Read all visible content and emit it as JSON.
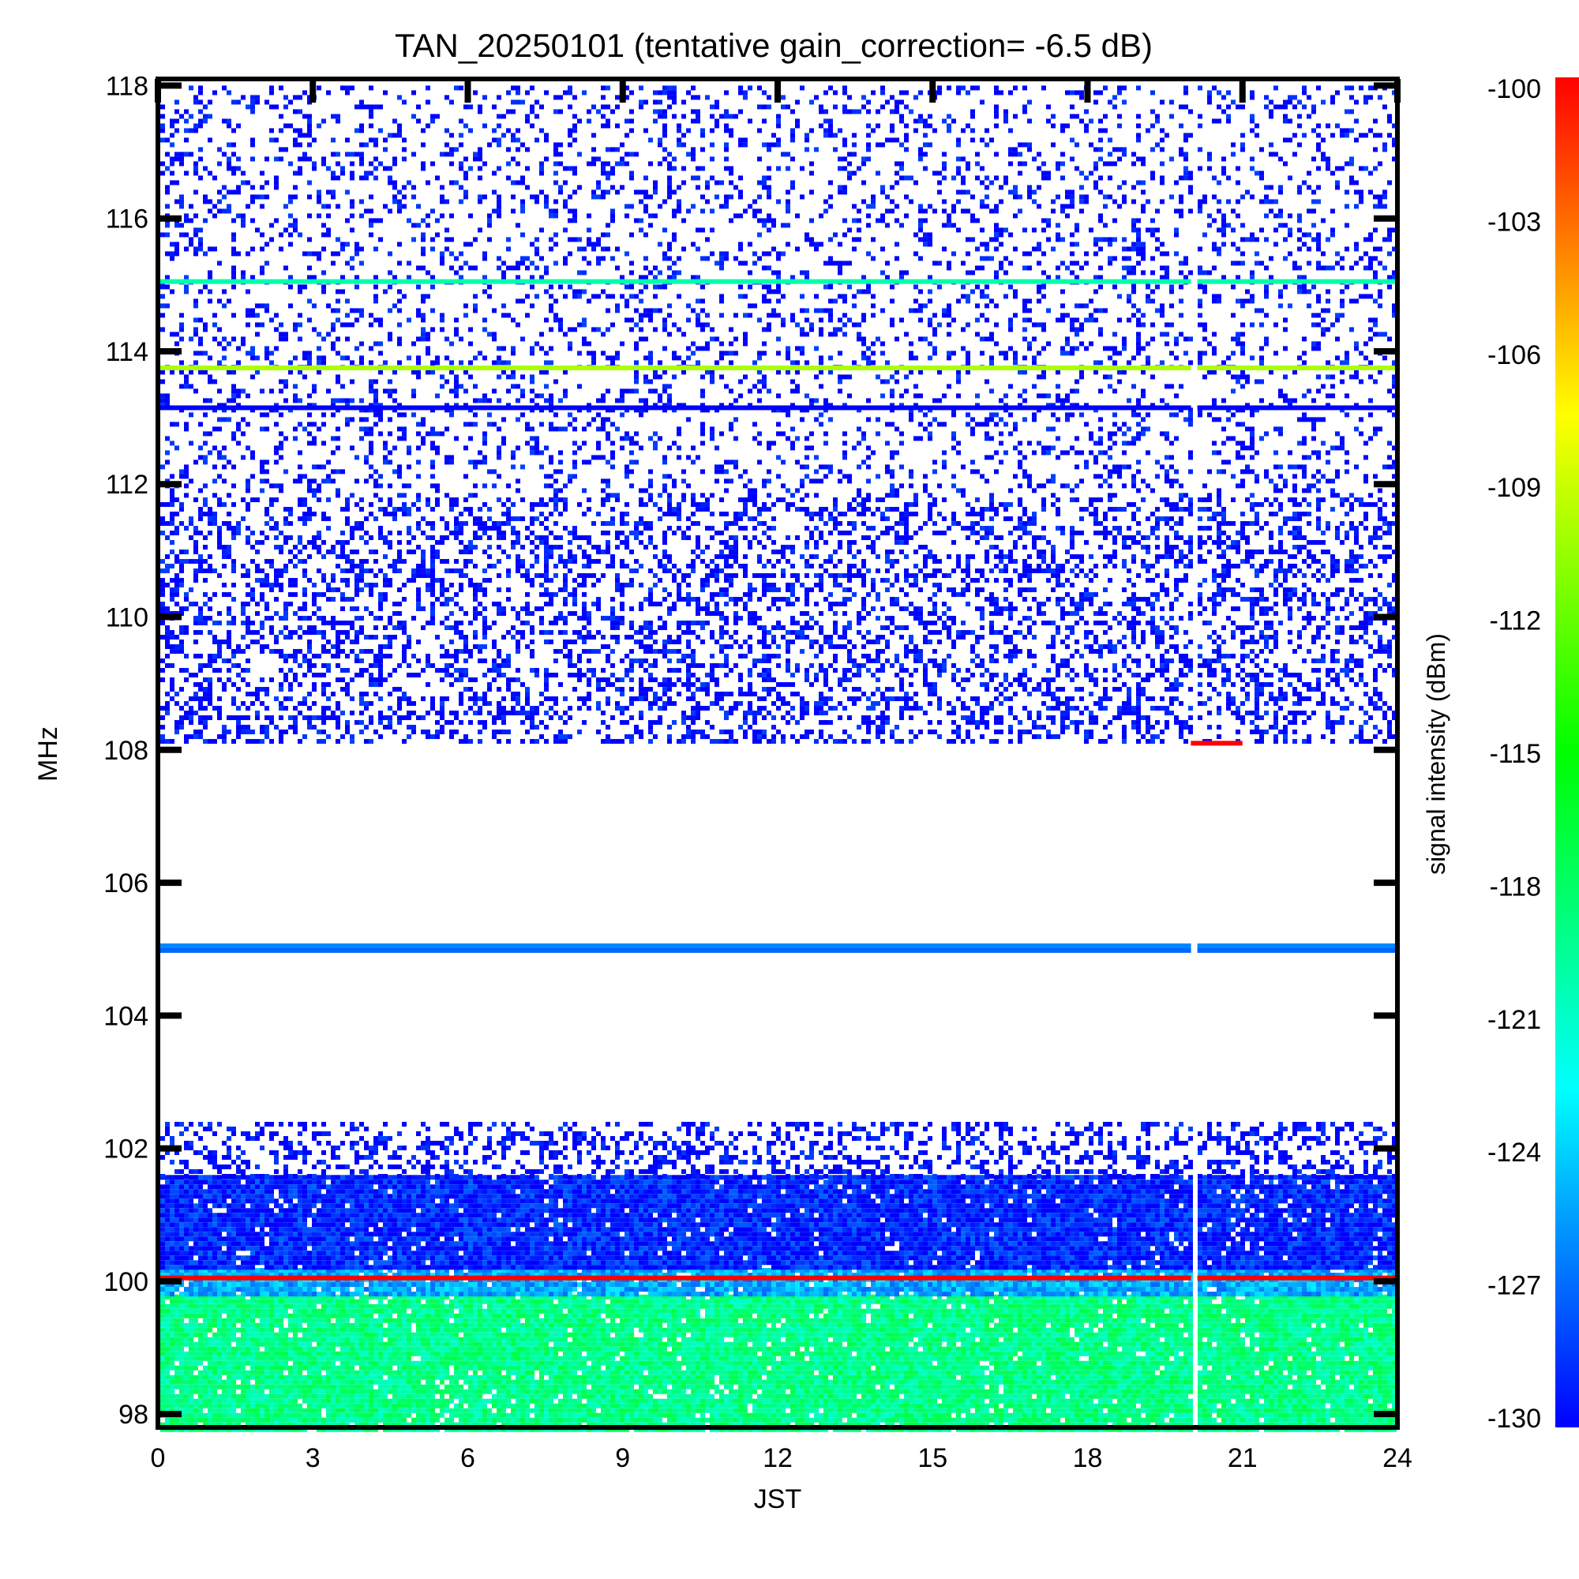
{
  "chart_data": {
    "type": "heatmap",
    "title": "TAN_20250101 (tentative gain_correction= -6.5 dB)",
    "xlabel": "JST",
    "ylabel": "MHz",
    "colorbar_label": "signal intensity (dBm)",
    "xlim": [
      0,
      24
    ],
    "ylim": [
      97.8,
      118.1
    ],
    "x_ticks": [
      0,
      3,
      6,
      9,
      12,
      15,
      18,
      21,
      24
    ],
    "y_ticks": [
      98,
      100,
      102,
      104,
      106,
      108,
      110,
      112,
      114,
      116,
      118
    ],
    "colorbar_range": [
      -130,
      -100
    ],
    "colorbar_ticks": [
      -100,
      -103,
      -106,
      -109,
      -112,
      -115,
      -118,
      -121,
      -124,
      -127,
      -130
    ],
    "colormap": [
      "#0000ff",
      "#00ffff",
      "#00ff00",
      "#ffff00",
      "#ff0000"
    ],
    "data_gap_jst": 20.05,
    "bands": [
      {
        "freq_range": [
          97.8,
          99.8
        ],
        "level_dbm": -119,
        "pattern": "dense"
      },
      {
        "freq_range": [
          99.8,
          100.2
        ],
        "level_dbm": -125,
        "pattern": "dense"
      },
      {
        "freq_range": [
          100.2,
          101.6
        ],
        "level_dbm": -129,
        "pattern": "dense"
      },
      {
        "freq_range": [
          101.6,
          102.4
        ],
        "level_dbm": -130,
        "pattern": "sparse"
      },
      {
        "freq_range": [
          108.1,
          111.8
        ],
        "level_dbm": -130,
        "pattern": "sparse"
      },
      {
        "freq_range": [
          111.8,
          118.0
        ],
        "level_dbm": -130,
        "pattern": "very-sparse"
      }
    ],
    "lines": [
      {
        "freq_mhz": 100.05,
        "level_dbm": -100
      },
      {
        "freq_mhz": 104.98,
        "level_dbm": -127
      },
      {
        "freq_mhz": 105.05,
        "level_dbm": -126
      },
      {
        "freq_mhz": 113.75,
        "level_dbm": -110
      },
      {
        "freq_mhz": 115.05,
        "level_dbm": -120
      },
      {
        "freq_mhz": 113.15,
        "level_dbm": -130
      }
    ],
    "segments": [
      {
        "freq_mhz": 108.1,
        "x_range": [
          20.0,
          21.0
        ],
        "level_dbm": -100
      }
    ]
  }
}
